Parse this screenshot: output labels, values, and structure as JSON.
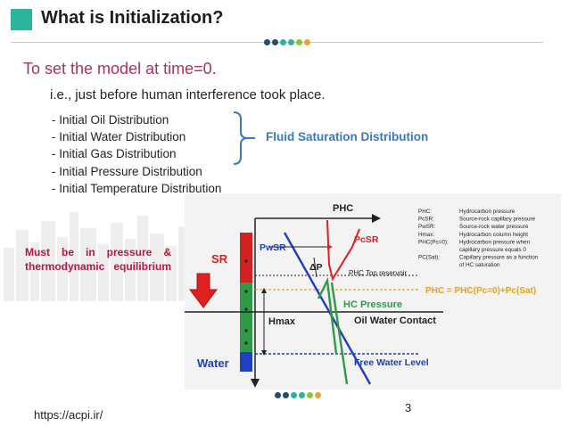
{
  "header": {
    "title": "What is Initialization?"
  },
  "content": {
    "subtitle": "To set the model at time=0.",
    "description": "i.e., just before human interference took place.",
    "bullets": [
      "- Initial Oil Distribution",
      "- Initial Water Distribution",
      "- Initial Gas Distribution",
      "- Initial Pressure Distribution",
      "- Initial Temperature Distribution"
    ],
    "brace_label": "Fluid Saturation Distribution",
    "note": "Must be in pressure & thermodynamic equilibrium"
  },
  "diagram": {
    "labels": {
      "phc": "PHC",
      "pwsr": "PwSR",
      "pcsr": "PcSR",
      "delta_p": "ΔP",
      "phc_top": "PHC Top reservoir",
      "sr": "SR",
      "hmax": "Hmax",
      "hc_pressure": "HC Pressure",
      "owc": "Oil Water Contact",
      "water": "Water",
      "fwl": "Free Water Level",
      "phc_formula": "PHC = PHC(Pc=0)+Pc(Sat)"
    },
    "legend": [
      {
        "symbol": "PHC:",
        "text": "Hydrocarbon pressure"
      },
      {
        "symbol": "PcSR:",
        "text": "Source-rock capillary pressure"
      },
      {
        "symbol": "PwSR:",
        "text": "Source-rock water pressure"
      },
      {
        "symbol": "Hmax:",
        "text": "Hydrocarbon column height"
      },
      {
        "symbol": "PHC(Pc=0):",
        "text": "Hydrocarbon pressure when"
      },
      {
        "symbol": "",
        "text": "capillary pressure equals 0"
      },
      {
        "symbol": "PC(Sat):",
        "text": "Capillary pressure as a function"
      },
      {
        "symbol": "",
        "text": "of HC saturation"
      }
    ],
    "colors": {
      "water_line": "#1f3fbf",
      "hc_line": "#2e9a48",
      "capillary_line": "#e02020",
      "formula": "#e8a020",
      "column_top": "#d42020",
      "column_middle": "#2e9a48",
      "column_bottom": "#1f3fbf"
    }
  },
  "footer": {
    "url": "https://acpi.ir/",
    "page": "3"
  },
  "decor": {
    "accent": "#2bb39b",
    "dot_colors": [
      "#2b4a6f",
      "#2b4a6f",
      "#2bb39b",
      "#2bb39b",
      "#8cc63f",
      "#f0a030"
    ]
  }
}
